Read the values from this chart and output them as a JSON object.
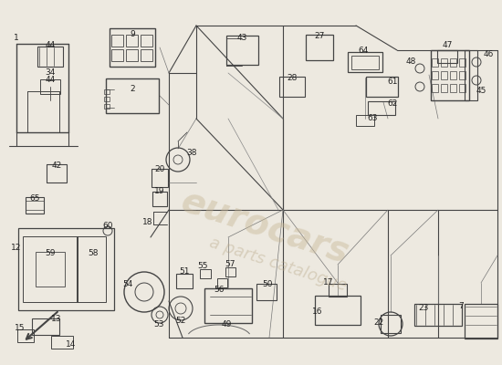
{
  "bg_color": "#ede9e0",
  "line_color": "#444444",
  "wm_color1": "#c8b898",
  "wm_color2": "#b8a888",
  "figsize": [
    5.5,
    4.0
  ],
  "dpi": 100
}
